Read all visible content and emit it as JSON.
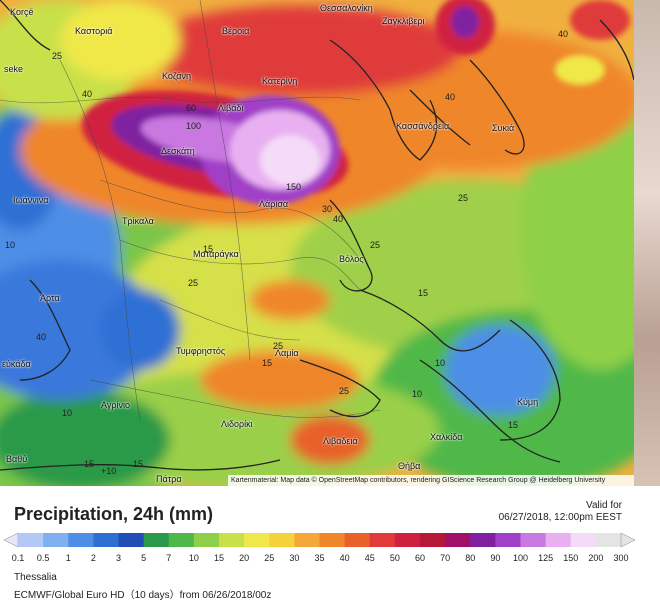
{
  "cities": [
    {
      "id": "korce",
      "name": "Korçë"
    },
    {
      "id": "kastoria",
      "name": "Καστοριά"
    },
    {
      "id": "veroia",
      "name": "Βέροια"
    },
    {
      "id": "thessaloniki",
      "name": "Θεσσαλονίκη"
    },
    {
      "id": "zagkliveri",
      "name": "Ζαγκλιβερι"
    },
    {
      "id": "kozani",
      "name": "Κοζάνη"
    },
    {
      "id": "katerini",
      "name": "Κατερίνη"
    },
    {
      "id": "seke",
      "name": "seke"
    },
    {
      "id": "livadi",
      "name": "Λιβάδι"
    },
    {
      "id": "kassandreia",
      "name": "Κασσάνδρεια"
    },
    {
      "id": "sykia",
      "name": "Συκιά"
    },
    {
      "id": "deskati",
      "name": "Δεσκάτη"
    },
    {
      "id": "ioannina",
      "name": "Ιωάννινα"
    },
    {
      "id": "larisa",
      "name": "Λάρισα"
    },
    {
      "id": "trikala",
      "name": "Τρίκαλα"
    },
    {
      "id": "matarangka",
      "name": "Ματαράγκα"
    },
    {
      "id": "volos",
      "name": "Βόλος"
    },
    {
      "id": "arta",
      "name": "Άρτα"
    },
    {
      "id": "lefkada",
      "name": "εύκάδα"
    },
    {
      "id": "tymfristos",
      "name": "Τυμφρηστός"
    },
    {
      "id": "lamia",
      "name": "Λαμία"
    },
    {
      "id": "agrinio",
      "name": "Αγρίνιο"
    },
    {
      "id": "kymi",
      "name": "Κύμη"
    },
    {
      "id": "lidoriki",
      "name": "Λιδορίκι"
    },
    {
      "id": "chalkida",
      "name": "Χαλκίδα"
    },
    {
      "id": "livadeia",
      "name": "Λιβαδειά"
    },
    {
      "id": "vathi",
      "name": "Βαθύ"
    },
    {
      "id": "thiva",
      "name": "Θήβα"
    },
    {
      "id": "patra",
      "name": "Πάτρα"
    }
  ],
  "contour_labels": [
    "25",
    "40",
    "60",
    "100",
    "150",
    "40",
    "25",
    "40",
    "30",
    "40",
    "25",
    "15",
    "25",
    "25",
    "15",
    "15",
    "10",
    "10",
    "25",
    "10",
    "15",
    "15",
    "+10",
    "15",
    "10",
    "40"
  ],
  "attribution": "Kartenmaterial: Map data © OpenStreetMap contributors, rendering GIScience Research Group @ Heidelberg University",
  "legend": {
    "title": "Precipitation, 24h (mm)",
    "valid_label": "Valid for",
    "valid_time": "06/27/2018, 12:00pm EEST",
    "ticks": [
      "0.1",
      "0.5",
      "1",
      "2",
      "3",
      "5",
      "7",
      "10",
      "15",
      "20",
      "25",
      "30",
      "35",
      "40",
      "45",
      "50",
      "60",
      "70",
      "80",
      "90",
      "100",
      "125",
      "150",
      "200",
      "300"
    ],
    "colors": [
      "#e6e6f8",
      "#b4c8f5",
      "#7fb0f0",
      "#4e8ee6",
      "#2f6fd4",
      "#1f4fb4",
      "#2a9a4a",
      "#4fb84a",
      "#8fd04a",
      "#c8e04a",
      "#f0e84a",
      "#f5d23a",
      "#f5a83a",
      "#f0862a",
      "#e8602a",
      "#e03a3a",
      "#d02040",
      "#b81838",
      "#a01068",
      "#8020a0",
      "#a040c8",
      "#c878e0",
      "#e8b0f0",
      "#f4dcf8",
      "#e4e4e4"
    ]
  },
  "region": "Thessalia",
  "model": "ECMWF/Global Euro HD（10 days）from 06/26/2018/00z"
}
